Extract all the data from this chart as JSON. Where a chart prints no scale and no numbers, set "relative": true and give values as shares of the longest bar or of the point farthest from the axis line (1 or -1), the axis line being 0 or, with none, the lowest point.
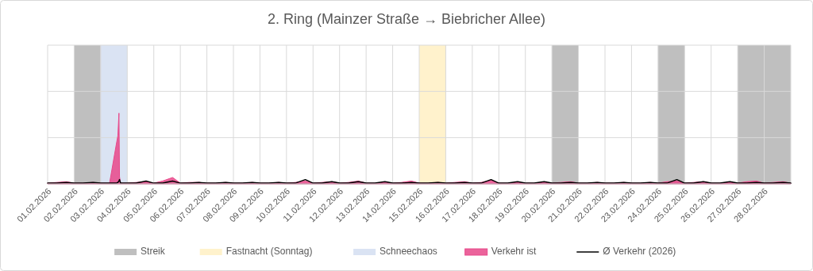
{
  "chart_data": {
    "type": "area",
    "title": "2. Ring (Mainzer Straße → Biebricher Allee)",
    "relative": true,
    "grid": true,
    "legend": "bottom",
    "xlim": [
      "2026-02-01T00:00",
      "2026-03-01T00:00"
    ],
    "xticks": [
      {
        "value": "2026-02-01",
        "label": "01.02.2026"
      },
      {
        "value": "2026-02-02",
        "label": "02.02.2026"
      },
      {
        "value": "2026-02-03",
        "label": "03.02.2026"
      },
      {
        "value": "2026-02-04",
        "label": "04.02.2026"
      },
      {
        "value": "2026-02-05",
        "label": "05.02.2026"
      },
      {
        "value": "2026-02-06",
        "label": "06.02.2026"
      },
      {
        "value": "2026-02-07",
        "label": "07.02.2026"
      },
      {
        "value": "2026-02-08",
        "label": "08.02.2026"
      },
      {
        "value": "2026-02-09",
        "label": "09.02.2026"
      },
      {
        "value": "2026-02-10",
        "label": "10.02.2026"
      },
      {
        "value": "2026-02-11",
        "label": "11.02.2026"
      },
      {
        "value": "2026-02-12",
        "label": "12.02.2026"
      },
      {
        "value": "2026-02-13",
        "label": "13.02.2026"
      },
      {
        "value": "2026-02-14",
        "label": "14.02.2026"
      },
      {
        "value": "2026-02-15",
        "label": "15.02.2026"
      },
      {
        "value": "2026-02-16",
        "label": "16.02.2026"
      },
      {
        "value": "2026-02-17",
        "label": "17.02.2026"
      },
      {
        "value": "2026-02-18",
        "label": "18.02.2026"
      },
      {
        "value": "2026-02-19",
        "label": "19.02.2026"
      },
      {
        "value": "2026-02-20",
        "label": "20.02.2026"
      },
      {
        "value": "2026-02-21",
        "label": "21.02.2026"
      },
      {
        "value": "2026-02-22",
        "label": "22.02.2026"
      },
      {
        "value": "2026-02-23",
        "label": "23.02.2026"
      },
      {
        "value": "2026-02-24",
        "label": "24.02.2026"
      },
      {
        "value": "2026-02-25",
        "label": "25.02.2026"
      },
      {
        "value": "2026-02-26",
        "label": "26.02.2026"
      },
      {
        "value": "2026-02-27",
        "label": "27.02.2026"
      },
      {
        "value": "2026-02-28",
        "label": "28.02.2026"
      }
    ],
    "x": [
      "2026-02-01T00:00",
      "2026-02-01T08:00",
      "2026-02-01T17:00",
      "2026-02-02T00:00",
      "2026-02-02T08:00",
      "2026-02-02T17:00",
      "2026-02-03T00:00",
      "2026-02-03T08:00",
      "2026-02-03T14:00",
      "2026-02-03T15:30",
      "2026-02-03T16:30",
      "2026-02-03T17:00",
      "2026-02-03T18:00",
      "2026-02-04T00:00",
      "2026-02-04T08:00",
      "2026-02-04T17:00",
      "2026-02-05T00:00",
      "2026-02-05T08:00",
      "2026-02-05T17:00",
      "2026-02-06T00:00",
      "2026-02-06T08:00",
      "2026-02-06T17:00",
      "2026-02-07T00:00",
      "2026-02-07T08:00",
      "2026-02-07T17:00",
      "2026-02-08T00:00",
      "2026-02-08T08:00",
      "2026-02-08T17:00",
      "2026-02-09T00:00",
      "2026-02-09T08:00",
      "2026-02-09T17:00",
      "2026-02-10T00:00",
      "2026-02-10T08:00",
      "2026-02-10T17:00",
      "2026-02-11T00:00",
      "2026-02-11T08:00",
      "2026-02-11T17:00",
      "2026-02-12T00:00",
      "2026-02-12T08:00",
      "2026-02-12T17:00",
      "2026-02-13T00:00",
      "2026-02-13T08:00",
      "2026-02-13T17:00",
      "2026-02-14T00:00",
      "2026-02-14T08:00",
      "2026-02-14T17:00",
      "2026-02-15T00:00",
      "2026-02-15T08:00",
      "2026-02-15T17:00",
      "2026-02-16T00:00",
      "2026-02-16T08:00",
      "2026-02-16T17:00",
      "2026-02-17T00:00",
      "2026-02-17T08:00",
      "2026-02-17T17:00",
      "2026-02-18T00:00",
      "2026-02-18T08:00",
      "2026-02-18T17:00",
      "2026-02-19T00:00",
      "2026-02-19T08:00",
      "2026-02-19T17:00",
      "2026-02-20T00:00",
      "2026-02-20T08:00",
      "2026-02-20T17:00",
      "2026-02-21T00:00",
      "2026-02-21T08:00",
      "2026-02-21T17:00",
      "2026-02-22T00:00",
      "2026-02-22T08:00",
      "2026-02-22T17:00",
      "2026-02-23T00:00",
      "2026-02-23T08:00",
      "2026-02-23T17:00",
      "2026-02-24T00:00",
      "2026-02-24T08:00",
      "2026-02-24T17:00",
      "2026-02-25T00:00",
      "2026-02-25T08:00",
      "2026-02-25T17:00",
      "2026-02-26T00:00",
      "2026-02-26T08:00",
      "2026-02-26T17:00",
      "2026-02-27T00:00",
      "2026-02-27T08:00",
      "2026-02-27T17:00",
      "2026-02-28T00:00",
      "2026-02-28T08:00",
      "2026-02-28T17:00",
      "2026-03-01T00:00"
    ],
    "series": [
      {
        "name": "Verkehr ist",
        "color": "#e8488a",
        "values": [
          0.01,
          0.02,
          0.03,
          0.01,
          0.01,
          0.02,
          0.01,
          0.01,
          0.55,
          0.68,
          1,
          0.1,
          0.01,
          0.01,
          0.02,
          0.03,
          0.01,
          0.04,
          0.09,
          0.01,
          0.02,
          0.02,
          0.01,
          0.01,
          0.02,
          0.01,
          0.01,
          0.02,
          0.01,
          0.01,
          0.02,
          0.01,
          0.02,
          0.04,
          0.01,
          0.02,
          0.03,
          0.01,
          0.02,
          0.04,
          0.01,
          0.01,
          0.02,
          0.01,
          0.02,
          0.04,
          0.01,
          0.01,
          0.02,
          0.01,
          0.02,
          0.03,
          0.01,
          0.02,
          0.05,
          0.01,
          0.01,
          0.02,
          0.01,
          0.01,
          0.02,
          0.01,
          0.02,
          0.03,
          0.01,
          0.01,
          0.02,
          0.01,
          0.01,
          0.02,
          0.01,
          0.01,
          0.02,
          0.01,
          0.03,
          0.04,
          0.01,
          0.02,
          0.03,
          0.01,
          0.01,
          0.02,
          0.01,
          0.03,
          0.04,
          0.01,
          0.02,
          0.03,
          0.01
        ]
      },
      {
        "name": "Ø Verkehr (2026)",
        "type": "line",
        "color": "#000000",
        "values": [
          0.01,
          0.01,
          0.02,
          0.01,
          0.01,
          0.02,
          0.01,
          0.01,
          0.01,
          0.02,
          0.04,
          0.06,
          0.01,
          0.01,
          0.01,
          0.04,
          0.01,
          0.01,
          0.04,
          0.01,
          0.01,
          0.02,
          0.01,
          0.01,
          0.02,
          0.01,
          0.01,
          0.02,
          0.01,
          0.01,
          0.02,
          0.01,
          0.01,
          0.06,
          0.01,
          0.01,
          0.03,
          0.01,
          0.01,
          0.03,
          0.01,
          0.01,
          0.03,
          0.01,
          0.01,
          0.02,
          0.01,
          0.01,
          0.02,
          0.01,
          0.01,
          0.02,
          0.01,
          0.01,
          0.06,
          0.01,
          0.01,
          0.03,
          0.01,
          0.01,
          0.03,
          0.01,
          0.01,
          0.02,
          0.01,
          0.01,
          0.02,
          0.01,
          0.01,
          0.02,
          0.01,
          0.01,
          0.02,
          0.01,
          0.01,
          0.06,
          0.01,
          0.01,
          0.03,
          0.01,
          0.01,
          0.03,
          0.01,
          0.01,
          0.02,
          0.01,
          0.01,
          0.02,
          0.01
        ]
      }
    ],
    "bands": [
      {
        "axis": "x",
        "from": "2026-02-02",
        "to": "2026-02-03",
        "label": "Streik",
        "color": "#bfbfbf"
      },
      {
        "axis": "x",
        "from": "2026-02-15",
        "to": "2026-02-16",
        "label": "Fastnacht (Sonntag)",
        "color": "#fff2cc"
      },
      {
        "axis": "x",
        "from": "2026-02-03",
        "to": "2026-02-04",
        "label": "Schneechaos",
        "color": "#dae3f3"
      },
      {
        "axis": "x",
        "from": "2026-02-20",
        "to": "2026-02-21",
        "color": "#bfbfbf"
      },
      {
        "axis": "x",
        "from": "2026-02-24",
        "to": "2026-02-25",
        "color": "#bfbfbf"
      },
      {
        "axis": "x",
        "from": "2026-02-27",
        "to": "2026-03-01",
        "color": "#bfbfbf"
      }
    ]
  }
}
